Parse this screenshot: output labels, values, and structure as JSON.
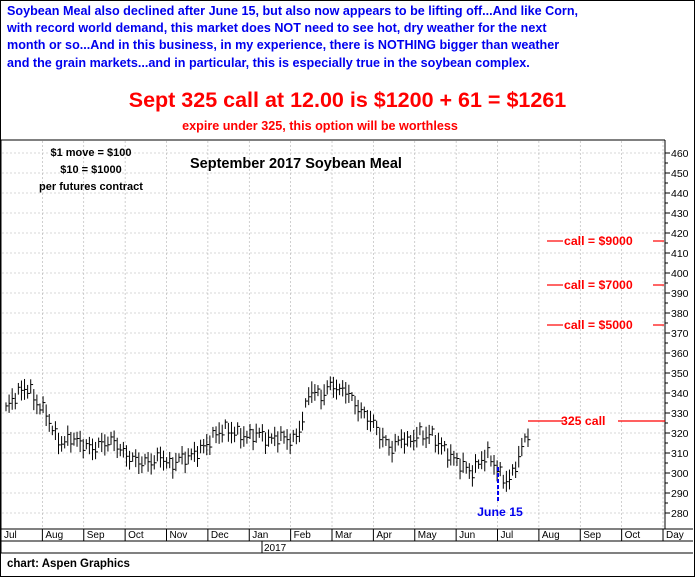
{
  "commentary": {
    "lines": [
      "Soybean Meal also declined after June 15, but also now appears to be lifting off...And like Corn,",
      "with record world demand, this market does NOT need to see hot, dry weather for the next",
      "month or so...And in this business, in my experience, there is NOTHING bigger than weather",
      "and the grain markets...and in particular, this is especially true in the soybean complex."
    ],
    "headline": "Sept 325 call at 12.00 is $1200 + 61 = $1261",
    "subline": "expire under 325, this option will be worthless"
  },
  "credit": "chart: Aspen Graphics",
  "colors": {
    "text_blue": "#0000ee",
    "accent_red": "#ff0000",
    "bars": "#000000",
    "grid": "#b0b0b0"
  },
  "chart_data": {
    "type": "ohlc-bar",
    "title": "September 2017 Soybean Meal",
    "notes": [
      "$1 move = $100",
      "$10 = $1000",
      "per futures contract"
    ],
    "x_ticks": [
      "Jul",
      "Aug",
      "Sep",
      "Oct",
      "Nov",
      "Dec",
      "Jan",
      "Feb",
      "Mar",
      "Apr",
      "May",
      "Jun",
      "Jul",
      "Aug",
      "Sep",
      "Oct",
      "Day"
    ],
    "year_label": "2017",
    "y_ticks": [
      280,
      290,
      300,
      310,
      320,
      330,
      340,
      350,
      360,
      370,
      380,
      390,
      400,
      410,
      420,
      430,
      440,
      450,
      460
    ],
    "ylim": [
      272,
      464
    ],
    "grid": true,
    "path_points": [
      [
        0,
        332
      ],
      [
        2,
        340
      ],
      [
        4,
        343
      ],
      [
        5,
        336
      ],
      [
        7,
        330
      ],
      [
        8,
        322
      ],
      [
        9,
        317
      ],
      [
        10,
        314
      ],
      [
        11,
        318
      ],
      [
        13,
        315
      ],
      [
        15,
        312
      ],
      [
        17,
        315
      ],
      [
        19,
        316
      ],
      [
        20,
        311
      ],
      [
        22,
        307
      ],
      [
        24,
        305
      ],
      [
        26,
        306
      ],
      [
        27,
        309
      ],
      [
        28,
        305
      ],
      [
        29,
        304
      ],
      [
        30,
        307
      ],
      [
        32,
        308
      ],
      [
        34,
        312
      ],
      [
        35,
        314
      ],
      [
        36,
        318
      ],
      [
        37,
        320
      ],
      [
        38,
        322
      ],
      [
        40,
        320
      ],
      [
        42,
        318
      ],
      [
        44,
        320
      ],
      [
        46,
        316
      ],
      [
        47,
        318
      ],
      [
        48,
        318
      ],
      [
        50,
        316
      ],
      [
        51,
        320
      ],
      [
        52,
        330
      ],
      [
        53,
        342
      ],
      [
        54,
        340
      ],
      [
        55,
        338
      ],
      [
        56,
        342
      ],
      [
        57,
        345
      ],
      [
        58,
        340
      ],
      [
        59,
        343
      ],
      [
        60,
        338
      ],
      [
        61,
        334
      ],
      [
        62,
        330
      ],
      [
        63,
        328
      ],
      [
        64,
        325
      ],
      [
        65,
        320
      ],
      [
        66,
        316
      ],
      [
        67,
        312
      ],
      [
        68,
        314
      ],
      [
        69,
        318
      ],
      [
        70,
        315
      ],
      [
        71,
        317
      ],
      [
        72,
        320
      ],
      [
        73,
        318
      ],
      [
        74,
        320
      ],
      [
        75,
        316
      ],
      [
        76,
        313
      ],
      [
        77,
        310
      ],
      [
        78,
        307
      ],
      [
        79,
        305
      ],
      [
        80,
        303
      ],
      [
        81,
        300
      ],
      [
        82,
        303
      ],
      [
        83,
        307
      ],
      [
        84,
        309
      ],
      [
        85,
        305
      ],
      [
        86,
        300
      ],
      [
        87,
        296
      ],
      [
        88,
        297
      ],
      [
        89,
        305
      ],
      [
        90,
        313
      ],
      [
        91,
        320
      ]
    ],
    "annotations": [
      {
        "label": "call = $9000",
        "price": 416
      },
      {
        "label": "call = $7000",
        "price": 394
      },
      {
        "label": "call = $5000",
        "price": 374
      },
      {
        "label": "325 call",
        "price": 326
      }
    ],
    "marker": {
      "label": "June 15",
      "price_top": 303,
      "price_bottom": 286
    }
  }
}
